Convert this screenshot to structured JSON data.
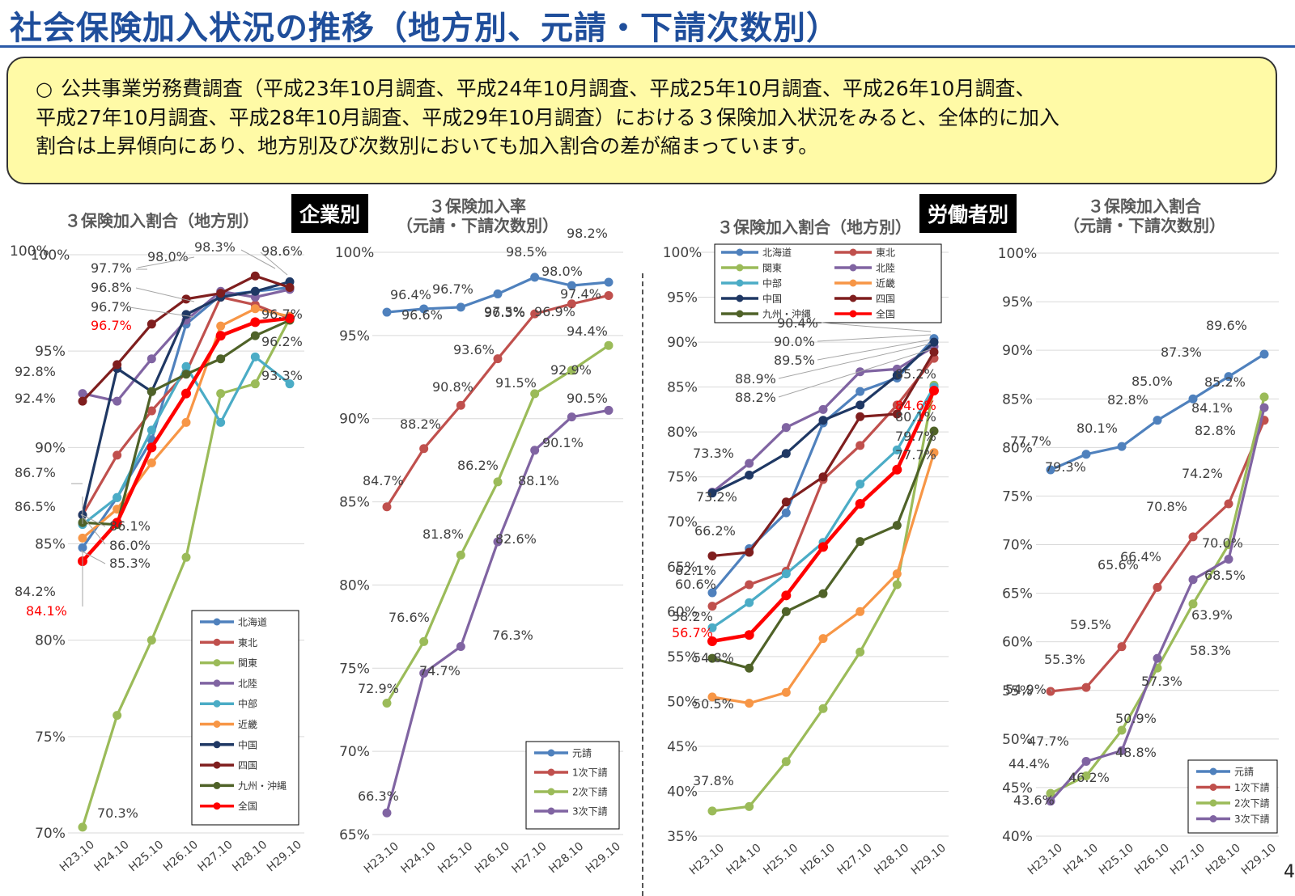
{
  "page": {
    "title": "社会保険加入状況の推移（地方別、元請・下請次数別）",
    "summary": [
      "○",
      "公共事業労務費調査（平成23年10月調査、平成24年10月調査、平成25年10月調査、平成26年10月調査、",
      "平成27年10月調査、平成28年10月調査、平成29年10月調査）における３保険加入状況をみると、全体的に加入",
      "割合は上昇傾向にあり、地方別及び次数別においても加入割合の差が縮まっています。"
    ],
    "tag_company": "企業別",
    "tag_worker": "労働者別",
    "page_number": "4"
  },
  "chart_data": [
    {
      "type": "line",
      "title": "３保険加入割合（地方別）",
      "categories": [
        "H23.10",
        "H24.10",
        "H25.10",
        "H26.10",
        "H27.10",
        "H28.10",
        "H29.10"
      ],
      "ylim": [
        70,
        100
      ],
      "yticks": [
        "70%",
        "75%",
        "80%",
        "85%",
        "90%",
        "95%",
        "100%"
      ],
      "legend": "bottom-right",
      "series": [
        {
          "name": "北海道",
          "color": "#4f81bd",
          "values": [
            84.8,
            87.4,
            90.4,
            96.4,
            97.9,
            98.1,
            98.3
          ]
        },
        {
          "name": "東北",
          "color": "#c0504d",
          "values": [
            86.5,
            89.6,
            91.9,
            93.9,
            97.8,
            97.4,
            96.7
          ]
        },
        {
          "name": "関東",
          "color": "#9bbb59",
          "values": [
            70.3,
            76.1,
            80.0,
            84.3,
            92.8,
            93.3,
            96.7
          ]
        },
        {
          "name": "北陸",
          "color": "#8064a2",
          "values": [
            92.8,
            92.4,
            94.6,
            96.6,
            98.1,
            97.8,
            98.2
          ]
        },
        {
          "name": "中部",
          "color": "#4bacc6",
          "values": [
            86.0,
            87.4,
            90.9,
            94.2,
            91.3,
            94.7,
            93.3
          ]
        },
        {
          "name": "近畿",
          "color": "#f79646",
          "values": [
            85.3,
            86.8,
            89.2,
            91.3,
            96.3,
            97.2,
            96.8
          ]
        },
        {
          "name": "中国",
          "color": "#1f3864",
          "values": [
            86.5,
            94.1,
            92.9,
            96.9,
            97.8,
            98.1,
            98.6
          ]
        },
        {
          "name": "四国",
          "color": "#7f1e1e",
          "values": [
            92.4,
            94.3,
            96.4,
            97.7,
            98.0,
            98.9,
            98.3
          ]
        },
        {
          "name": "九州・沖縄",
          "color": "#4f6228",
          "values": [
            86.1,
            86.0,
            92.9,
            93.8,
            94.6,
            95.8,
            96.6
          ]
        },
        {
          "name": "全国",
          "color": "#ff0000",
          "values": [
            84.1,
            86.1,
            90.0,
            92.8,
            95.8,
            96.5,
            96.7
          ]
        }
      ],
      "data_labels": [
        "100%",
        "98.3%",
        "98.6%",
        "98.0%",
        "97.7%",
        "96.8%",
        "96.7%",
        "96.7%",
        "96.2%",
        "93.3%",
        "92.8%",
        "92.4%",
        "86.7%",
        "86.5%",
        "86.1%",
        "86.0%",
        "85.3%",
        "84.2%",
        "84.1%",
        "70.3%",
        "96.7%"
      ]
    },
    {
      "type": "line",
      "title": "３保険加入率（元請・下請次数別）",
      "categories": [
        "H23.10",
        "H24.10",
        "H25.10",
        "H26.10",
        "H27.10",
        "H28.10",
        "H29.10"
      ],
      "ylim": [
        65,
        100
      ],
      "yticks": [
        "65%",
        "70%",
        "75%",
        "80%",
        "85%",
        "90%",
        "95%",
        "100%"
      ],
      "legend": "bottom-right",
      "series": [
        {
          "name": "元請",
          "color": "#4f81bd",
          "values": [
            96.4,
            96.6,
            96.7,
            97.5,
            98.5,
            98.0,
            98.2
          ]
        },
        {
          "name": "1次下請",
          "color": "#c0504d",
          "values": [
            84.7,
            88.2,
            90.8,
            93.6,
            96.3,
            96.9,
            97.4
          ]
        },
        {
          "name": "2次下請",
          "color": "#9bbb59",
          "values": [
            72.9,
            76.6,
            81.8,
            86.2,
            91.5,
            92.9,
            94.4
          ]
        },
        {
          "name": "3次下請",
          "color": "#8064a2",
          "values": [
            66.3,
            74.7,
            76.3,
            82.6,
            88.1,
            90.1,
            90.5
          ]
        }
      ]
    },
    {
      "type": "line",
      "title": "３保険加入割合（地方別）",
      "categories": [
        "H23.10",
        "H24.10",
        "H25.10",
        "H26.10",
        "H27.10",
        "H28.10",
        "H29.10"
      ],
      "ylim": [
        35,
        100
      ],
      "yticks": [
        "35%",
        "40%",
        "45%",
        "50%",
        "55%",
        "60%",
        "65%",
        "70%",
        "75%",
        "80%",
        "85%",
        "90%",
        "95%",
        "100%"
      ],
      "legend": "top",
      "series": [
        {
          "name": "北海道",
          "color": "#4f81bd",
          "values": [
            62.1,
            67.0,
            71.0,
            81.0,
            84.5,
            86.0,
            90.4
          ]
        },
        {
          "name": "東北",
          "color": "#c0504d",
          "values": [
            60.6,
            63.0,
            64.5,
            74.7,
            78.5,
            83.0,
            88.2
          ]
        },
        {
          "name": "関東",
          "color": "#9bbb59",
          "values": [
            37.8,
            38.3,
            43.3,
            49.2,
            55.5,
            63.0,
            85.2
          ]
        },
        {
          "name": "北陸",
          "color": "#8064a2",
          "values": [
            73.3,
            76.5,
            80.5,
            82.5,
            86.7,
            87.0,
            89.5
          ]
        },
        {
          "name": "中部",
          "color": "#4bacc6",
          "values": [
            58.2,
            61.0,
            64.2,
            67.7,
            74.2,
            78.0,
            85.0
          ]
        },
        {
          "name": "近畿",
          "color": "#f79646",
          "values": [
            50.5,
            49.8,
            51.0,
            57.0,
            60.0,
            64.2,
            77.7
          ]
        },
        {
          "name": "中国",
          "color": "#1f3864",
          "values": [
            73.2,
            75.2,
            77.6,
            81.3,
            83.0,
            86.3,
            90.0
          ]
        },
        {
          "name": "四国",
          "color": "#7f1e1e",
          "values": [
            66.2,
            66.6,
            72.2,
            75.0,
            81.7,
            82.0,
            88.9
          ]
        },
        {
          "name": "九州・沖縄",
          "color": "#4f6228",
          "values": [
            54.8,
            53.7,
            60.0,
            62.0,
            67.8,
            69.6,
            80.1
          ]
        },
        {
          "name": "全国",
          "color": "#ff0000",
          "values": [
            56.7,
            57.4,
            61.8,
            67.2,
            72.0,
            75.8,
            84.6
          ]
        }
      ],
      "data_labels": [
        "90.4%",
        "90.0%",
        "89.5%",
        "88.9%",
        "88.2%",
        "85.2%",
        "84.6%",
        "80.1%",
        "79.7%",
        "77.7%",
        "73.3%",
        "73.2%",
        "66.2%",
        "62.1%",
        "60.6%",
        "58.2%",
        "56.7%",
        "54.8%",
        "50.5%",
        "37.8%"
      ]
    },
    {
      "type": "line",
      "title": "３保険加入割合（元請・下請次数別）",
      "categories": [
        "H23.10",
        "H24.10",
        "H25.10",
        "H26.10",
        "H27.10",
        "H28.10",
        "H29.10"
      ],
      "ylim": [
        40,
        100
      ],
      "yticks": [
        "40%",
        "45%",
        "50%",
        "55%",
        "60%",
        "65%",
        "70%",
        "75%",
        "80%",
        "85%",
        "90%",
        "95%",
        "100%"
      ],
      "legend": "bottom-right",
      "series": [
        {
          "name": "元請",
          "color": "#4f81bd",
          "values": [
            77.7,
            79.3,
            80.1,
            82.8,
            85.0,
            87.3,
            89.6
          ]
        },
        {
          "name": "1次下請",
          "color": "#c0504d",
          "values": [
            54.9,
            55.3,
            59.5,
            65.6,
            70.8,
            74.2,
            82.8
          ]
        },
        {
          "name": "2次下請",
          "color": "#9bbb59",
          "values": [
            44.4,
            46.2,
            50.9,
            57.3,
            63.9,
            70.0,
            85.2
          ]
        },
        {
          "name": "3次下請",
          "color": "#8064a2",
          "values": [
            43.6,
            47.7,
            48.8,
            58.3,
            66.4,
            68.5,
            84.1
          ]
        }
      ]
    }
  ]
}
